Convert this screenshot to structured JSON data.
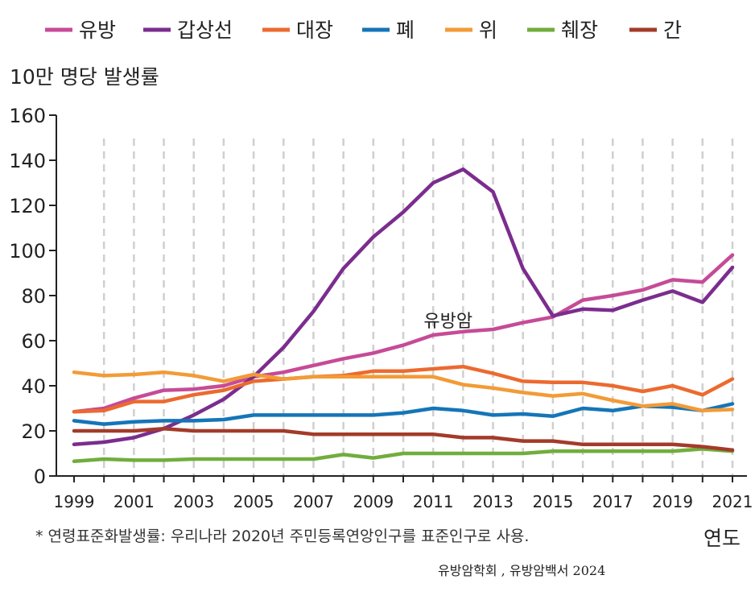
{
  "chart_data": {
    "type": "line",
    "ylabel": "10만 명당 발생률",
    "xlabel": "연도",
    "ylim": [
      0,
      160
    ],
    "yticks": [
      0,
      20,
      40,
      60,
      80,
      100,
      120,
      140,
      160
    ],
    "xlim": [
      1999,
      2021
    ],
    "xtick_labels": [
      "1999",
      "2001",
      "2003",
      "2005",
      "2007",
      "2009",
      "2011",
      "2013",
      "2015",
      "2017",
      "2019",
      "2021"
    ],
    "xtick_values": [
      1999,
      2001,
      2003,
      2005,
      2007,
      2009,
      2011,
      2013,
      2015,
      2017,
      2019,
      2021
    ],
    "grid": "vertical dashed",
    "legend_position": "top",
    "x": [
      1999,
      2000,
      2001,
      2002,
      2003,
      2004,
      2005,
      2006,
      2007,
      2008,
      2009,
      2010,
      2011,
      2012,
      2013,
      2014,
      2015,
      2016,
      2017,
      2018,
      2019,
      2020,
      2021
    ],
    "series": [
      {
        "name": "유방",
        "color": "#c64b97",
        "values": [
          28.5,
          30,
          34.5,
          38,
          38.5,
          40,
          44,
          46,
          49,
          52,
          54.5,
          58,
          62.5,
          64,
          65,
          68,
          70.5,
          78,
          80,
          82.5,
          87,
          86,
          98
        ]
      },
      {
        "name": "갑상선",
        "color": "#7b2d8e",
        "values": [
          14,
          15,
          17,
          21,
          27,
          34,
          44,
          57,
          73,
          92,
          106,
          117,
          130,
          136,
          126,
          92,
          71,
          74,
          73.5,
          78,
          82,
          77,
          92.5
        ]
      },
      {
        "name": "대장",
        "color": "#ec6a2f",
        "values": [
          28.5,
          29,
          33,
          33,
          36,
          38,
          42,
          43,
          44,
          44.5,
          46.5,
          46.5,
          47.5,
          48.5,
          45.5,
          42,
          41.5,
          41.5,
          40,
          37.5,
          40,
          36,
          43
        ]
      },
      {
        "name": "폐",
        "color": "#1575b8",
        "values": [
          24.5,
          23,
          24,
          24.5,
          24.5,
          25,
          27,
          27,
          27,
          27,
          27,
          28,
          30,
          29,
          27,
          27.5,
          26.5,
          30,
          29,
          31,
          30.5,
          29,
          32
        ]
      },
      {
        "name": "위",
        "color": "#f29b37",
        "values": [
          46,
          44.5,
          45,
          46,
          44.5,
          42,
          45,
          43,
          44,
          44,
          44,
          44,
          44,
          40.5,
          39,
          37,
          35.5,
          36.5,
          33.5,
          31,
          32,
          29,
          29.5
        ]
      },
      {
        "name": "췌장",
        "color": "#71ad3c",
        "values": [
          6.5,
          7.5,
          7,
          7,
          7.5,
          7.5,
          7.5,
          7.5,
          7.5,
          9.5,
          8,
          10,
          10,
          10,
          10,
          10,
          11,
          11,
          11,
          11,
          11,
          12,
          11
        ]
      },
      {
        "name": "간",
        "color": "#a33b2a",
        "values": [
          20,
          20,
          20,
          21,
          20,
          20,
          20,
          20,
          18.5,
          18.5,
          18.5,
          18.5,
          18.5,
          17,
          17,
          15.5,
          15.5,
          14,
          14,
          14,
          14,
          13,
          11.5
        ]
      }
    ],
    "annotations": [
      {
        "text": "유방암",
        "x": 2011.5,
        "y": 66
      }
    ],
    "footnote": "* 연령표준화발생률: 우리나라 2020년 주민등록연앙인구를 표준인구로 사용.",
    "source": "유방암학회 , 유방암백서 2024"
  }
}
